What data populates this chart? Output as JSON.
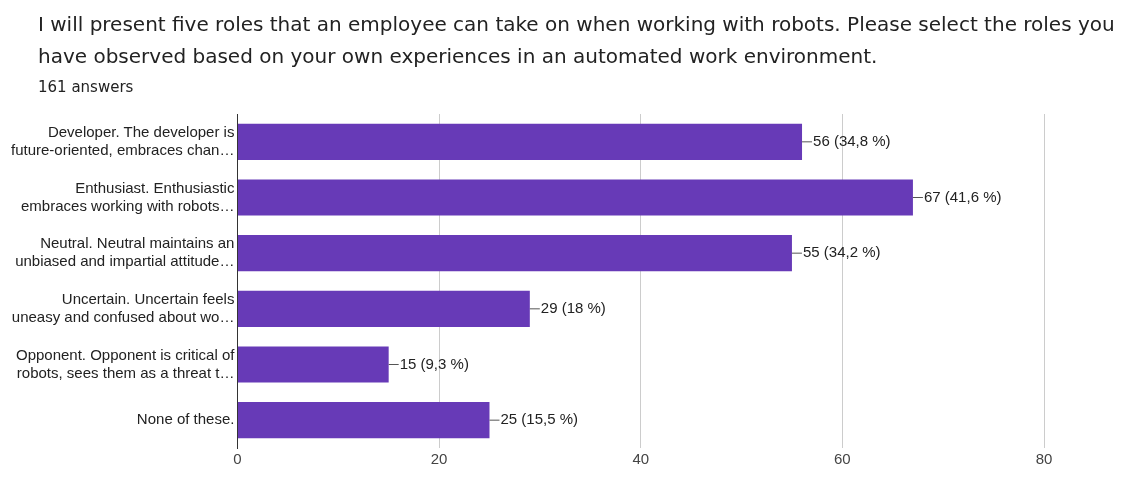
{
  "chart_data": {
    "type": "bar",
    "orientation": "horizontal",
    "title": "I will present five roles that an employee can take on when working with robots. Please select the roles you have observed based on your own experiences in an automated work environment.",
    "subtitle": "161 answers",
    "categories": [
      "Developer. The developer is\nfuture-oriented, embraces chan…",
      "Enthusiast. Enthusiastic\nembraces working with robots…",
      "Neutral. Neutral maintains an\nunbiased and impartial attitude…",
      "Uncertain. Uncertain feels\nuneasy and confused about wo…",
      "Opponent. Opponent is critical of\nrobots, sees them as a threat t…",
      "None of these."
    ],
    "values": [
      56,
      67,
      55,
      29,
      15,
      25
    ],
    "value_labels": [
      "56 (34,8 %)",
      "67 (41,6 %)",
      "55 (34,2 %)",
      "29 (18 %)",
      "15 (9,3 %)",
      "25 (15,5 %)"
    ],
    "color": "#673ab7",
    "xlim": [
      0,
      80
    ],
    "xticks": [
      0,
      20,
      40,
      60,
      80
    ],
    "grid": "x",
    "legend": false
  }
}
